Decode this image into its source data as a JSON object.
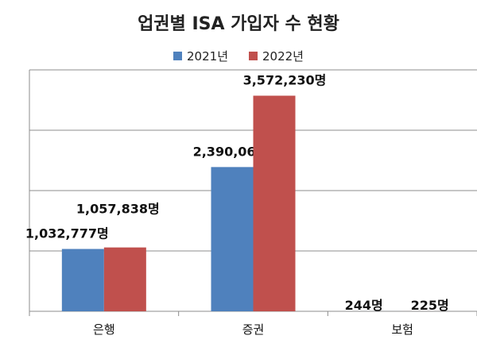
{
  "chart_data": {
    "type": "bar",
    "title": "업권별 ISA 가입자 수 현황",
    "categories": [
      "은행",
      "증권",
      "보험"
    ],
    "series": [
      {
        "name": "2021년",
        "values": [
          1032777,
          2390061,
          244
        ],
        "labels": [
          "1,032,777명",
          "2,390,061명",
          "244명"
        ],
        "color": "#4f81bd"
      },
      {
        "name": "2022년",
        "values": [
          1057838,
          3572230,
          225
        ],
        "labels": [
          "1,057,838명",
          "3,572,230명",
          "225명"
        ],
        "color": "#c0504d"
      }
    ],
    "ylim": [
      0,
      4000000
    ],
    "grid": true,
    "legend_position": "top"
  }
}
